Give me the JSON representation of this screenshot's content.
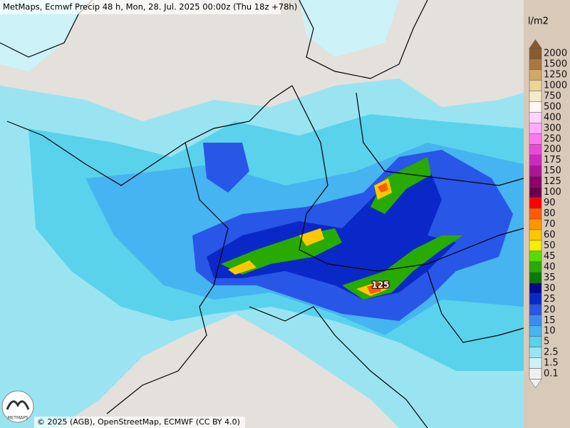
{
  "header": {
    "title": "MetMaps, Ecmwf Precip 48 h, Mon, 28. Jul. 2025 00:00z (Thu 18z +78h)"
  },
  "legend": {
    "unit": "l/m2",
    "levels": [
      {
        "label": "2000",
        "color": "#8a5a2e"
      },
      {
        "label": "1500",
        "color": "#a87840"
      },
      {
        "label": "1250",
        "color": "#d0a868"
      },
      {
        "label": "1000",
        "color": "#ead49a"
      },
      {
        "label": "750",
        "color": "#f6ebc8"
      },
      {
        "label": "500",
        "color": "#fff6f6"
      },
      {
        "label": "400",
        "color": "#ffd6ff"
      },
      {
        "label": "300",
        "color": "#ffaaff"
      },
      {
        "label": "250",
        "color": "#ff78f2"
      },
      {
        "label": "200",
        "color": "#ea48dc"
      },
      {
        "label": "175",
        "color": "#d028bc"
      },
      {
        "label": "150",
        "color": "#b01496"
      },
      {
        "label": "125",
        "color": "#8c0070"
      },
      {
        "label": "100",
        "color": "#6a0050"
      },
      {
        "label": "90",
        "color": "#ff0000"
      },
      {
        "label": "80",
        "color": "#ff5a00"
      },
      {
        "label": "70",
        "color": "#ff9600"
      },
      {
        "label": "60",
        "color": "#ffc800"
      },
      {
        "label": "50",
        "color": "#f0f000"
      },
      {
        "label": "45",
        "color": "#58dc00"
      },
      {
        "label": "40",
        "color": "#28aa00"
      },
      {
        "label": "35",
        "color": "#0a7a00"
      },
      {
        "label": "30",
        "color": "#000a8c"
      },
      {
        "label": "25",
        "color": "#0a28c8"
      },
      {
        "label": "20",
        "color": "#2856e6"
      },
      {
        "label": "15",
        "color": "#3c8cf0"
      },
      {
        "label": "10",
        "color": "#46b4f0"
      },
      {
        "label": "5",
        "color": "#5ad2ec"
      },
      {
        "label": "2.5",
        "color": "#9ae4f2"
      },
      {
        "label": "1.5",
        "color": "#ccf2f8"
      },
      {
        "label": "0.1",
        "color": "#f0f0f0"
      }
    ]
  },
  "map": {
    "peak_label": "125"
  },
  "logo": {
    "text": "METMAPS"
  },
  "footer": {
    "attribution": "© 2025 (AGB), OpenStreetMap, ECMWF (CC BY 4.0)"
  }
}
